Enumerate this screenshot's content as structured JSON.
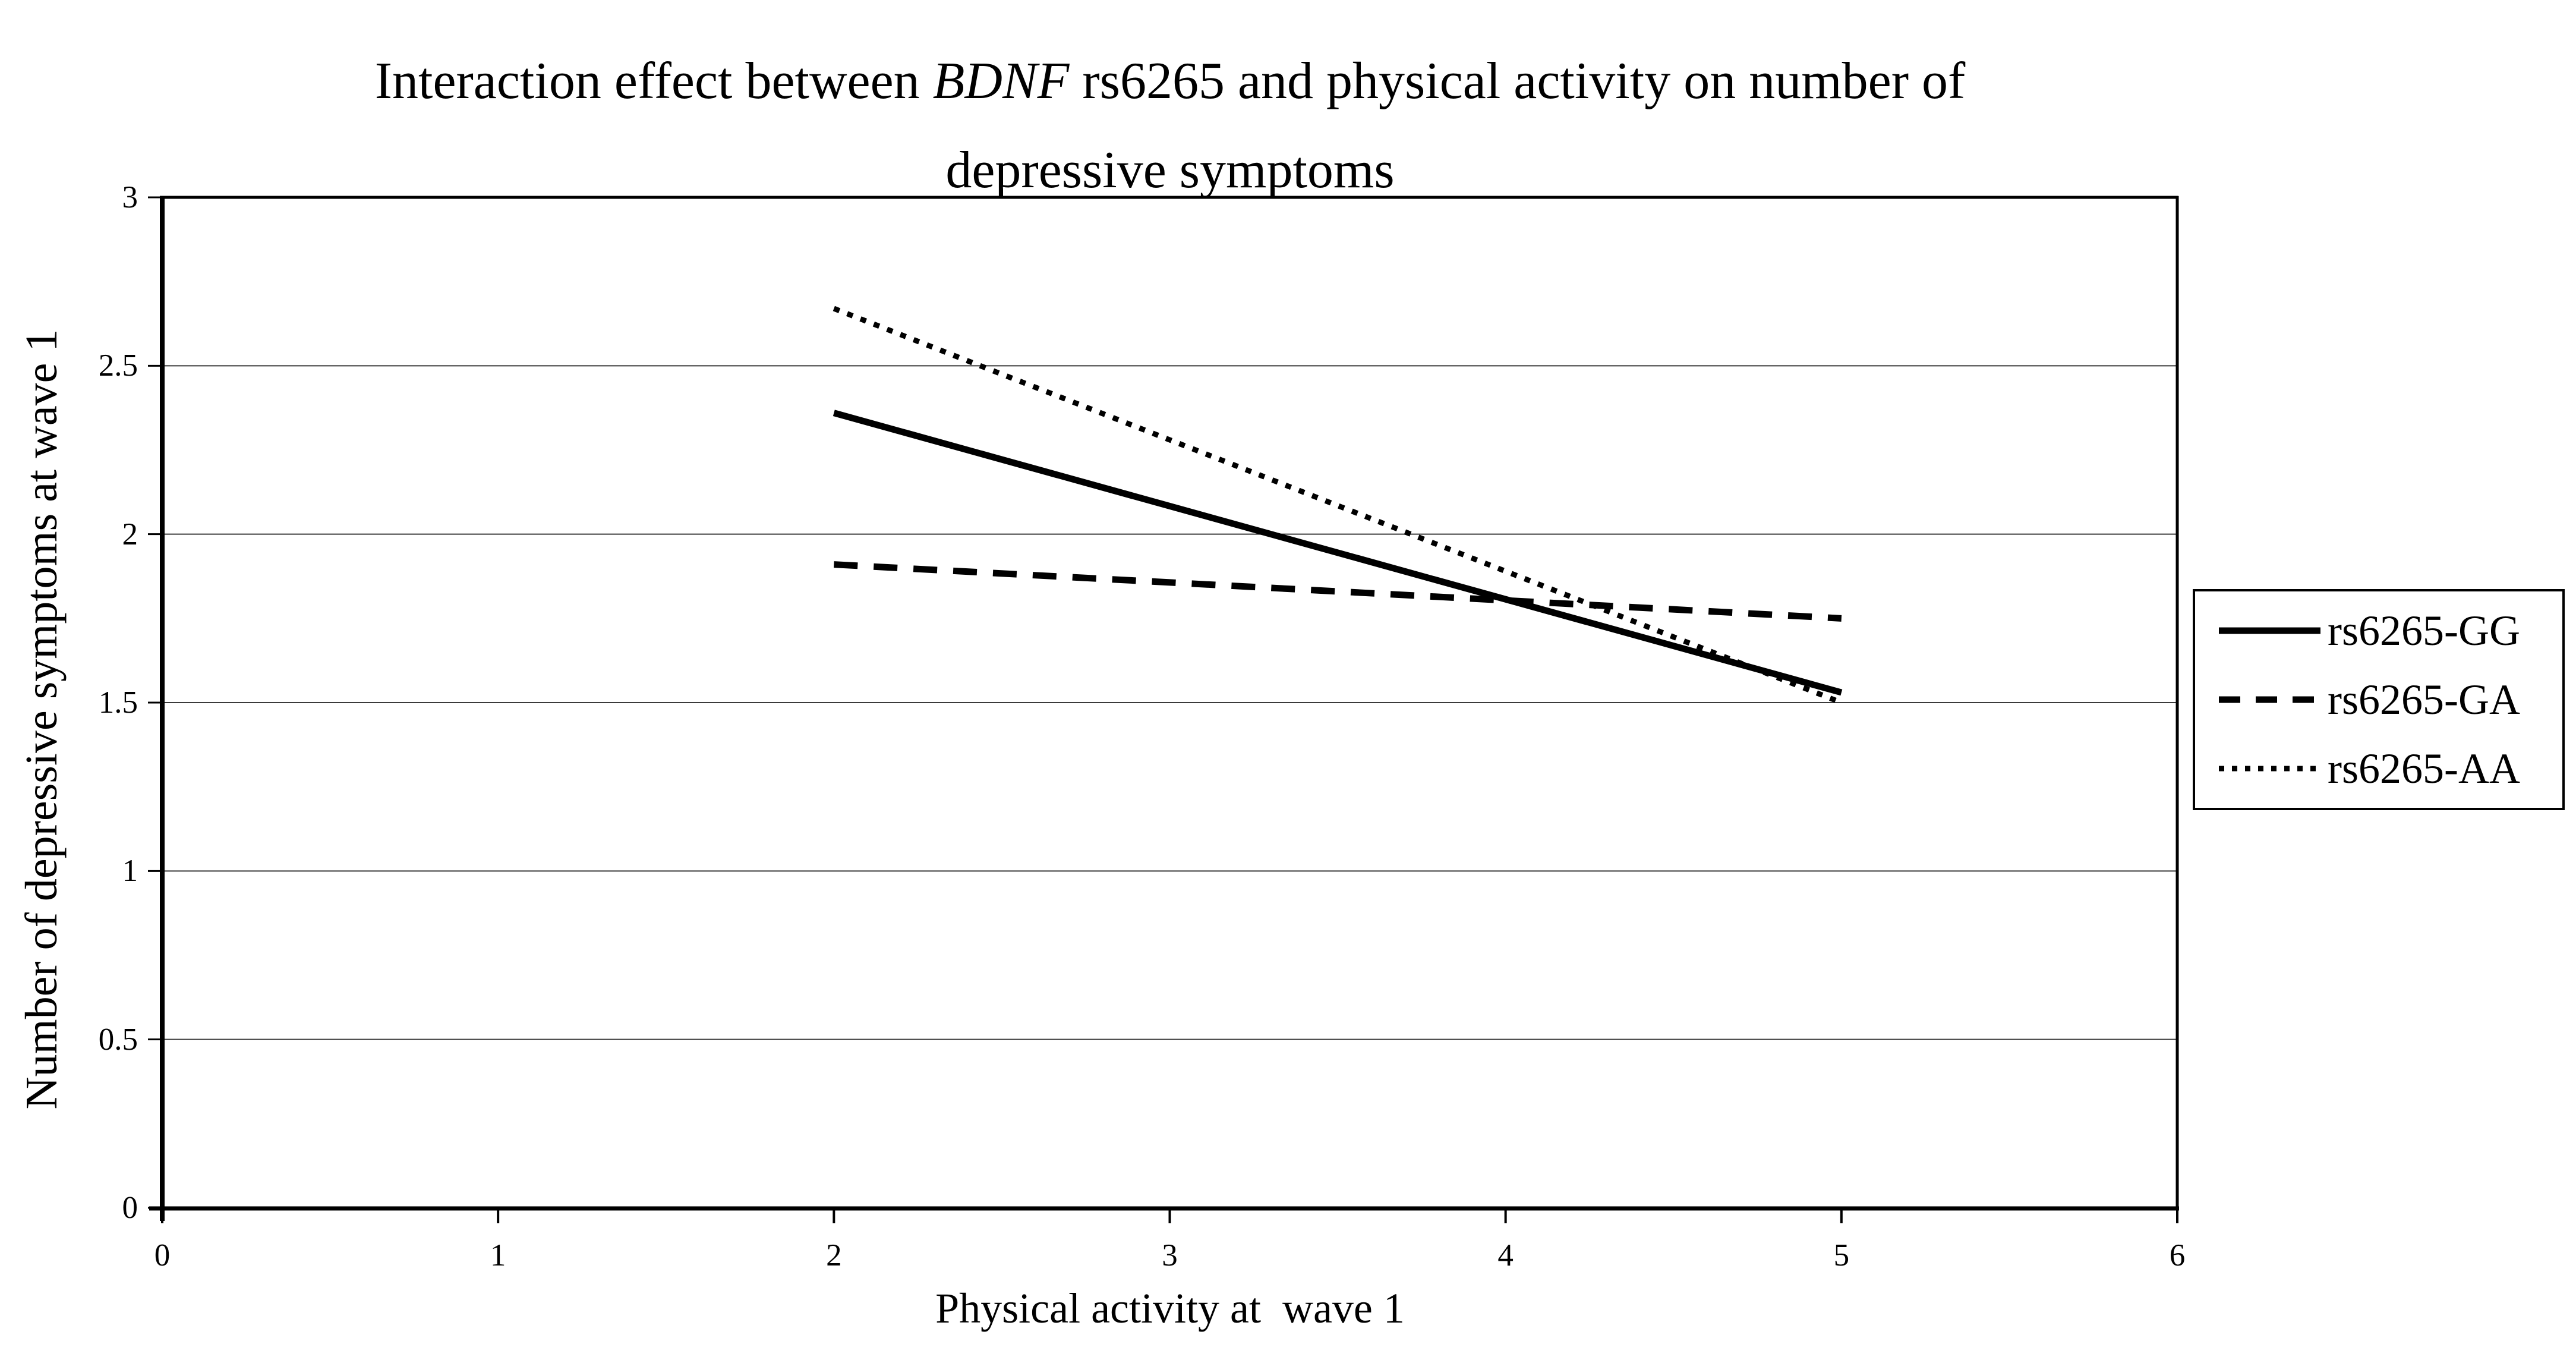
{
  "figure": {
    "title": {
      "line1_prefix": "Interaction effect between ",
      "line1_italic": "BDNF",
      "line1_suffix": " rs6265 and physical activity on number of",
      "line2": "depressive symptoms"
    }
  },
  "chart_data": {
    "type": "line",
    "title": "Interaction effect between BDNF rs6265 and physical activity on number of depressive symptoms",
    "title_italic_term": "BDNF",
    "xlabel": "Physical activity at  wave 1",
    "ylabel": "Number of depressive symptoms at wave 1",
    "xlim": [
      0,
      6
    ],
    "ylim": [
      0,
      3
    ],
    "xticks": [
      "0",
      "1",
      "2",
      "3",
      "4",
      "5",
      "6"
    ],
    "yticks": [
      "0",
      "0.5",
      "1",
      "1.5",
      "2",
      "2.5",
      "3"
    ],
    "grid": "horizontal-only",
    "legend_position": "right",
    "series": [
      {
        "name": "rs6265-GG",
        "line_style": "solid",
        "x": [
          2,
          5
        ],
        "y": [
          2.36,
          1.53
        ],
        "color": "#000000"
      },
      {
        "name": "rs6265-GA",
        "line_style": "dashed",
        "x": [
          2,
          5
        ],
        "y": [
          1.91,
          1.75
        ],
        "color": "#000000"
      },
      {
        "name": "rs6265-AA",
        "line_style": "dotted",
        "x": [
          2,
          5
        ],
        "y": [
          2.67,
          1.5
        ],
        "color": "#000000"
      }
    ],
    "colors": {
      "background": "#ffffff",
      "axis": "#000000",
      "gridline": "#3a3a3a",
      "text": "#000000"
    }
  }
}
